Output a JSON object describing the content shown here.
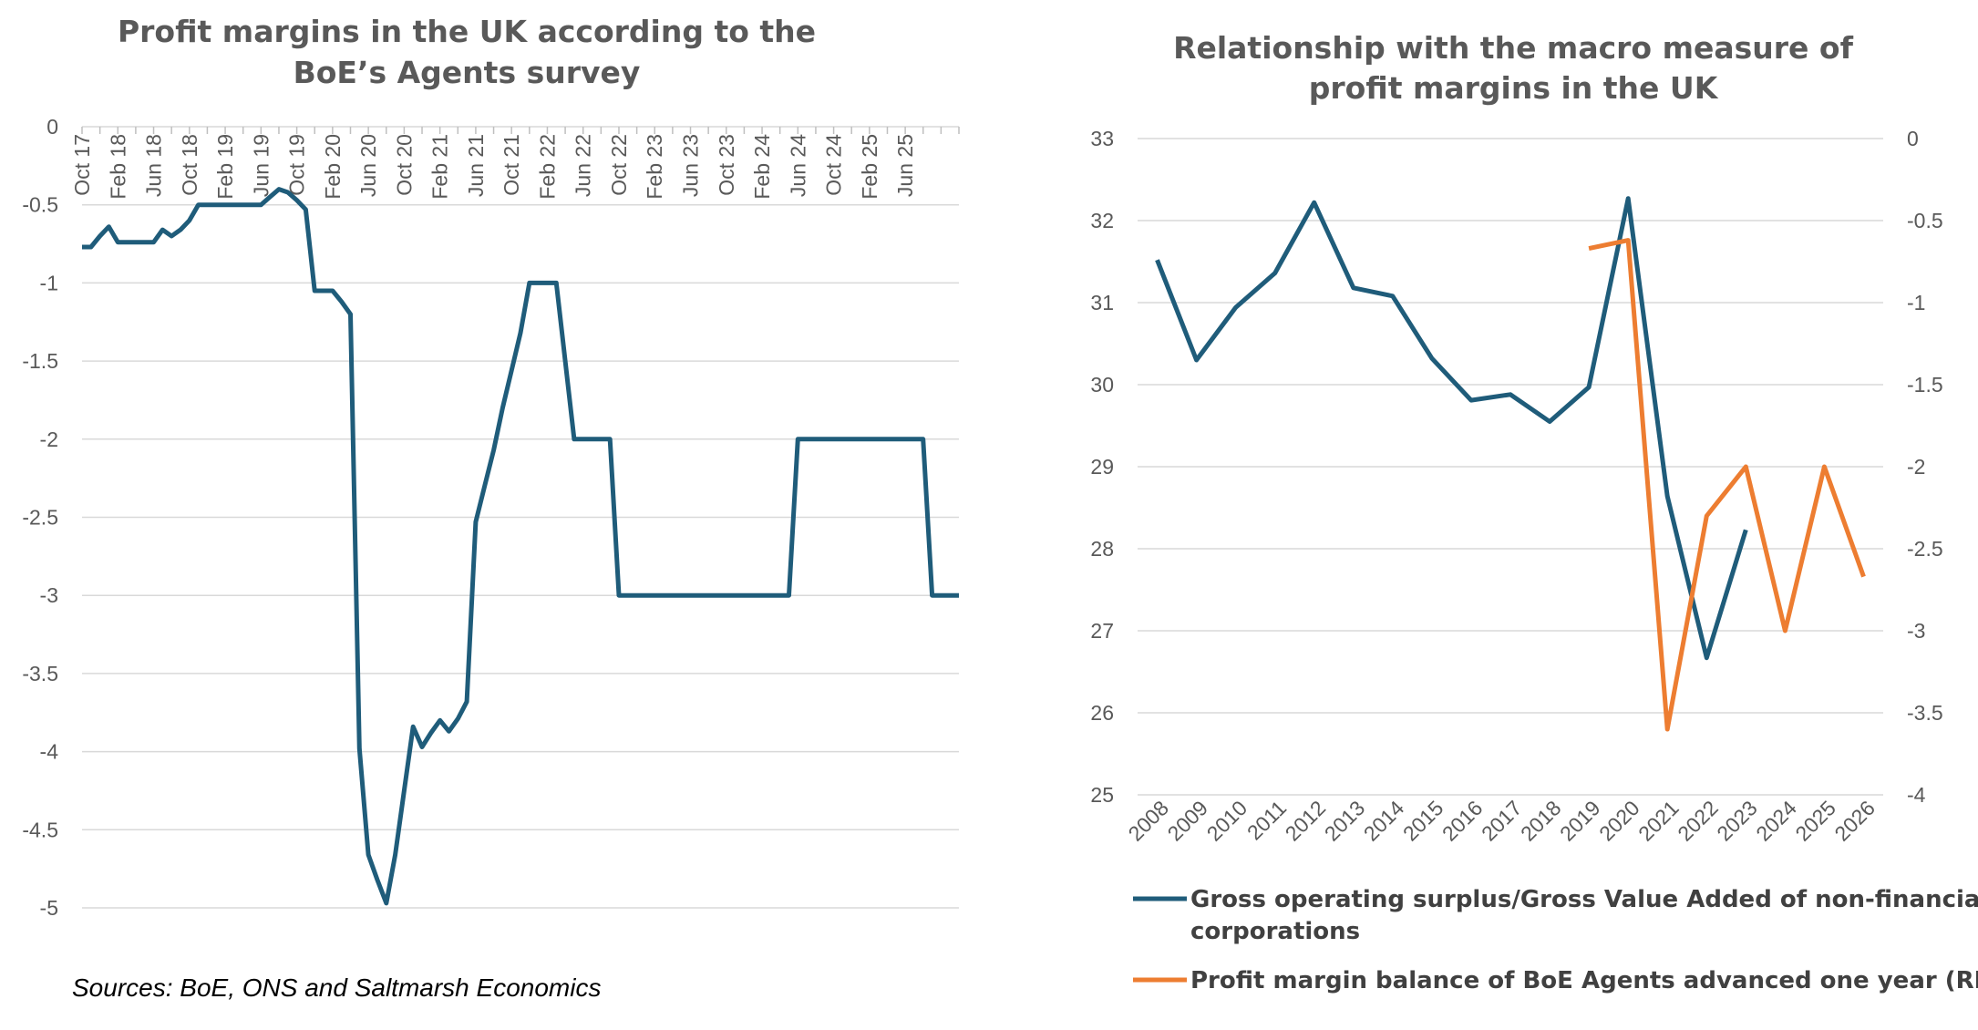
{
  "source_note": "Sources: BoE, ONS and Saltmarsh Economics",
  "colors": {
    "blue": "#1F5C7A",
    "orange": "#ED7D31",
    "grid": "#D9D9D9",
    "text": "#595959"
  },
  "chart_data": [
    {
      "type": "line",
      "title_lines": [
        "Profit margins in the UK according to the",
        "BoE’s Agents survey"
      ],
      "ylim": [
        -5,
        0
      ],
      "yticks": [
        "0",
        "-0.5",
        "-1",
        "-1.5",
        "-2",
        "-2.5",
        "-3",
        "-3.5",
        "-4",
        "-4.5",
        "-5"
      ],
      "grid": true,
      "xtick_labels": [
        "Oct 17",
        "Feb 18",
        "Jun 18",
        "Oct 18",
        "Feb 19",
        "Jun 19",
        "Oct 19",
        "Feb 20",
        "Jun 20",
        "Oct 20",
        "Feb 21",
        "Jun 21",
        "Oct 21",
        "Feb 22",
        "Jun 22",
        "Oct 22",
        "Feb 23",
        "Jun 23",
        "Oct 23",
        "Feb 24",
        "Jun 24",
        "Oct 24",
        "Feb 25",
        "Jun 25"
      ],
      "xtick_position": "top",
      "series": [
        {
          "color": "#1F5C7A",
          "values": [
            -0.77,
            -0.77,
            -0.7,
            -0.64,
            -0.74,
            -0.74,
            -0.74,
            -0.74,
            -0.74,
            -0.66,
            -0.7,
            -0.66,
            -0.6,
            -0.5,
            -0.5,
            -0.5,
            -0.5,
            -0.5,
            -0.5,
            -0.5,
            -0.5,
            -0.45,
            -0.4,
            -0.42,
            -0.47,
            -0.53,
            -1.05,
            -1.05,
            -1.05,
            -1.12,
            -1.2,
            -3.98,
            -4.66,
            -4.82,
            -4.97,
            -4.66,
            -4.25,
            -3.84,
            -3.97,
            -3.88,
            -3.8,
            -3.87,
            -3.79,
            -3.68,
            -2.53,
            -2.3,
            -2.07,
            -1.8,
            -1.56,
            -1.32,
            -1.0,
            -1.0,
            -1.0,
            -1.0,
            -1.5,
            -2.0,
            -2.0,
            -2.0,
            -2.0,
            -2.0,
            -3.0,
            -3.0,
            -3.0,
            -3.0,
            -3.0,
            -3.0,
            -3.0,
            -3.0,
            -3.0,
            -3.0,
            -3.0,
            -3.0,
            -3.0,
            -3.0,
            -3.0,
            -3.0,
            -3.0,
            -3.0,
            -3.0,
            -3.0,
            -2.0,
            -2.0,
            -2.0,
            -2.0,
            -2.0,
            -2.0,
            -2.0,
            -2.0,
            -2.0,
            -2.0,
            -2.0,
            -2.0,
            -2.0,
            -2.0,
            -2.0,
            -3.0,
            -3.0,
            -3.0,
            -3.0
          ]
        }
      ]
    },
    {
      "type": "line",
      "title_lines": [
        "Relationship with the macro measure of",
        "profit margins in the UK"
      ],
      "categories": [
        "2008",
        "2009",
        "2010",
        "2011",
        "2012",
        "2013",
        "2014",
        "2015",
        "2016",
        "2017",
        "2018",
        "2019",
        "2020",
        "2021",
        "2022",
        "2023",
        "2024",
        "2025",
        "2026"
      ],
      "ylim_left": [
        25,
        33
      ],
      "yticks_left": [
        "33",
        "32",
        "31",
        "30",
        "29",
        "28",
        "27",
        "26",
        "25"
      ],
      "ylim_right": [
        -4,
        0
      ],
      "yticks_right": [
        "0",
        "-0.5",
        "-1",
        "-1.5",
        "-2",
        "-2.5",
        "-3",
        "-3.5",
        "-4"
      ],
      "grid": true,
      "legend_position": "bottom",
      "series": [
        {
          "name": "Gross operating surplus/Gross Value Added of non-financial corporations",
          "name_lines": [
            "Gross operating surplus/Gross Value Added of non-financial",
            "corporations"
          ],
          "axis": "left",
          "color": "#1F5C7A",
          "values": [
            31.52,
            30.3,
            30.94,
            31.36,
            32.22,
            31.18,
            31.08,
            30.32,
            29.81,
            29.88,
            29.55,
            29.97,
            32.27,
            28.64,
            26.67,
            28.23,
            null,
            null,
            null
          ]
        },
        {
          "name": "Profit margin balance of BoE Agents advanced one year (RHS)",
          "name_lines": [
            "Profit margin balance of BoE Agents advanced one year (RHS)"
          ],
          "axis": "right",
          "color": "#ED7D31",
          "values": [
            null,
            null,
            null,
            null,
            null,
            null,
            null,
            null,
            null,
            null,
            null,
            -0.67,
            -0.62,
            -3.6,
            -2.3,
            -2.0,
            -3.0,
            -2.0,
            -2.67
          ]
        }
      ]
    }
  ]
}
